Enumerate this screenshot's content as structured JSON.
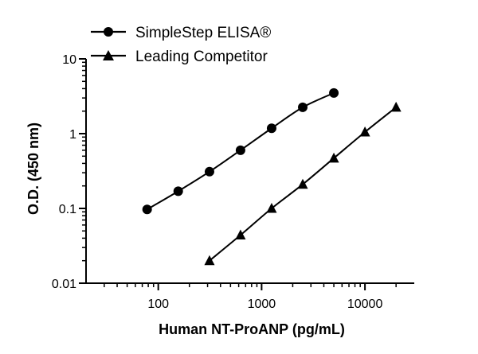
{
  "chart_data": {
    "type": "line",
    "xlabel": "Human NT-ProANP (pg/mL)",
    "ylabel": "O.D. (450 nm)",
    "x_scale": "log",
    "y_scale": "log",
    "xlim": [
      20,
      30000
    ],
    "ylim": [
      0.01,
      10
    ],
    "x_ticks": [
      100,
      1000,
      10000
    ],
    "x_tick_labels": [
      "100",
      "1000",
      "10000"
    ],
    "y_ticks": [
      0.01,
      0.1,
      1,
      10
    ],
    "y_tick_labels": [
      "0.01",
      "0.1",
      "1",
      "10"
    ],
    "grid": false,
    "legend_position": "top",
    "series": [
      {
        "name": "SimpleStep ELISA®",
        "marker": "circle",
        "x": [
          78,
          156,
          313,
          625,
          1250,
          2500,
          5000
        ],
        "y": [
          0.097,
          0.17,
          0.31,
          0.6,
          1.18,
          2.25,
          3.5
        ]
      },
      {
        "name": "Leading Competitor",
        "marker": "triangle",
        "x": [
          313,
          625,
          1250,
          2500,
          5000,
          10000,
          20000
        ],
        "y": [
          0.02,
          0.044,
          0.1,
          0.21,
          0.47,
          1.05,
          2.25
        ]
      }
    ]
  }
}
